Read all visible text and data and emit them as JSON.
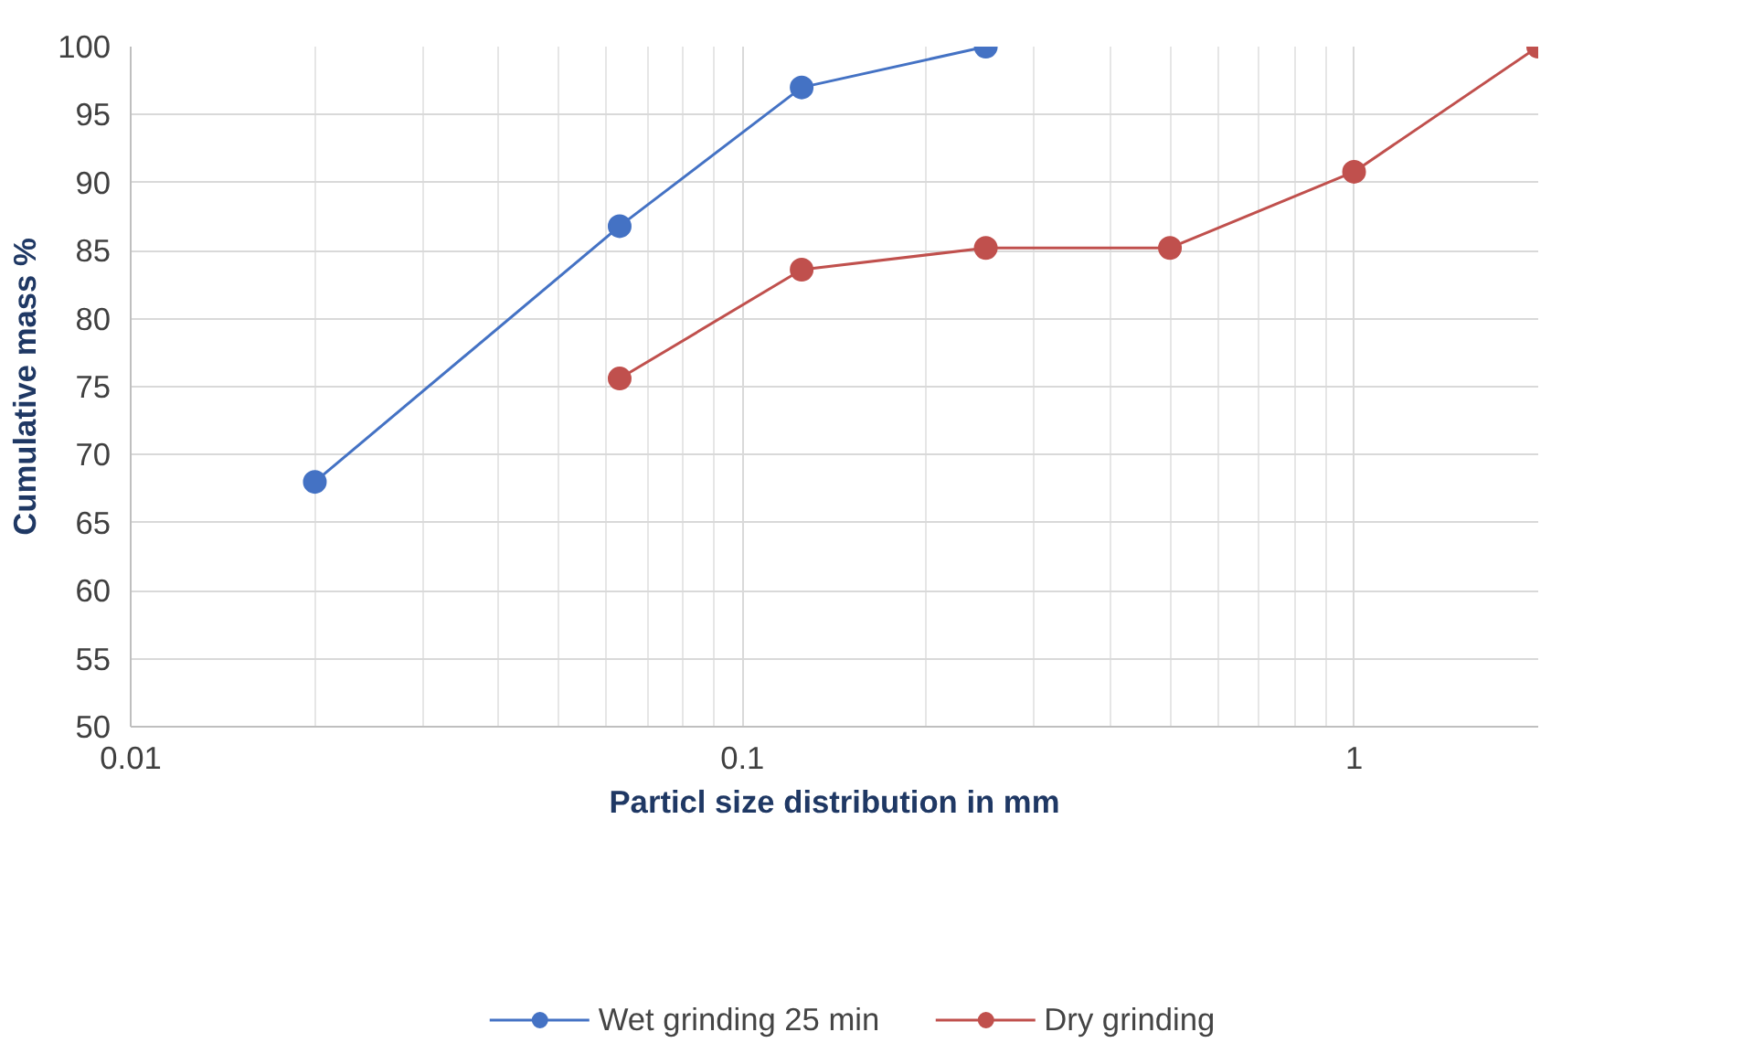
{
  "chart_data": {
    "type": "line",
    "xlabel": "Particl size distribution in mm",
    "ylabel": "Cumulative mass %",
    "log": "x",
    "xlim": [
      0.01,
      2
    ],
    "xticks": [
      0.01,
      0.1,
      1
    ],
    "ylim": [
      50,
      100
    ],
    "yticks": [
      50,
      55,
      60,
      65,
      70,
      75,
      80,
      85,
      90,
      95,
      100
    ],
    "grid": true,
    "legend": "bottom",
    "marker": "circle",
    "line_style": "solid",
    "series": [
      {
        "name": "Wet grinding 25 min",
        "color": "#4472c4",
        "x": [
          0.02,
          0.063,
          0.125,
          0.25
        ],
        "values": [
          68,
          86.8,
          97,
          100
        ]
      },
      {
        "name": "Dry grinding",
        "color": "#c0504d",
        "x": [
          0.063,
          0.125,
          0.25,
          0.5,
          1,
          2
        ],
        "values": [
          75.6,
          83.6,
          85.2,
          85.2,
          90.8,
          100
        ]
      }
    ]
  }
}
